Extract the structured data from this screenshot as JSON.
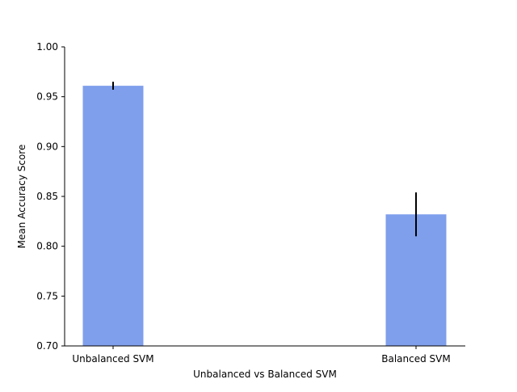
{
  "chart_data": {
    "type": "bar",
    "title": "",
    "categories": [
      "Unbalanced SVM",
      "Balanced SVM"
    ],
    "values": [
      0.961,
      0.832
    ],
    "errors": [
      0.004,
      0.022
    ],
    "xlabel": "Unbalanced vs Balanced SVM",
    "ylabel": "Mean Accuracy Score",
    "ylim": [
      0.7,
      1.0
    ],
    "yticks": [
      "0.70",
      "0.75",
      "0.80",
      "0.85",
      "0.90",
      "0.95",
      "1.00"
    ],
    "grid": false,
    "legend": "none",
    "bar_color": "#7f9fec",
    "error_color": "#000000"
  }
}
